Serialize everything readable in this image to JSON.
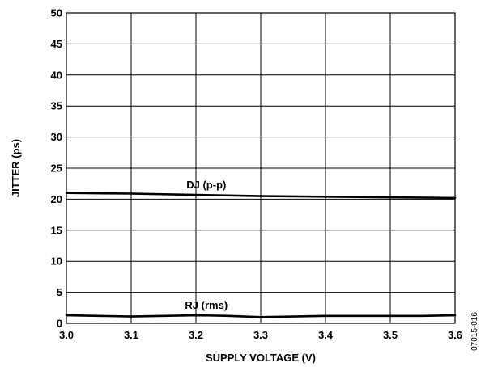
{
  "chart_data": {
    "type": "line",
    "title": "",
    "xlabel": "SUPPLY VOLTAGE (V)",
    "ylabel": "JITTER (ps)",
    "xlim": [
      3.0,
      3.6
    ],
    "ylim": [
      0,
      50
    ],
    "x_ticks": [
      3.0,
      3.1,
      3.2,
      3.3,
      3.4,
      3.5,
      3.6
    ],
    "x_tick_labels": [
      "3.0",
      "3.1",
      "3.2",
      "3.3",
      "3.4",
      "3.5",
      "3.6"
    ],
    "y_ticks": [
      0,
      5,
      10,
      15,
      20,
      25,
      30,
      35,
      40,
      45,
      50
    ],
    "y_tick_labels": [
      "0",
      "5",
      "10",
      "15",
      "20",
      "25",
      "30",
      "35",
      "40",
      "45",
      "50"
    ],
    "grid": true,
    "series": [
      {
        "name": "DJ (p-p)",
        "x": [
          3.0,
          3.1,
          3.2,
          3.3,
          3.4,
          3.5,
          3.6
        ],
        "values": [
          21.0,
          20.9,
          20.7,
          20.5,
          20.4,
          20.3,
          20.2
        ]
      },
      {
        "name": "RJ (rms)",
        "x": [
          3.0,
          3.05,
          3.1,
          3.15,
          3.2,
          3.25,
          3.3,
          3.35,
          3.4,
          3.45,
          3.5,
          3.55,
          3.6
        ],
        "values": [
          1.3,
          1.2,
          1.1,
          1.2,
          1.3,
          1.2,
          1.0,
          1.1,
          1.2,
          1.2,
          1.2,
          1.2,
          1.3
        ]
      }
    ],
    "figure_id": "07015-016"
  }
}
